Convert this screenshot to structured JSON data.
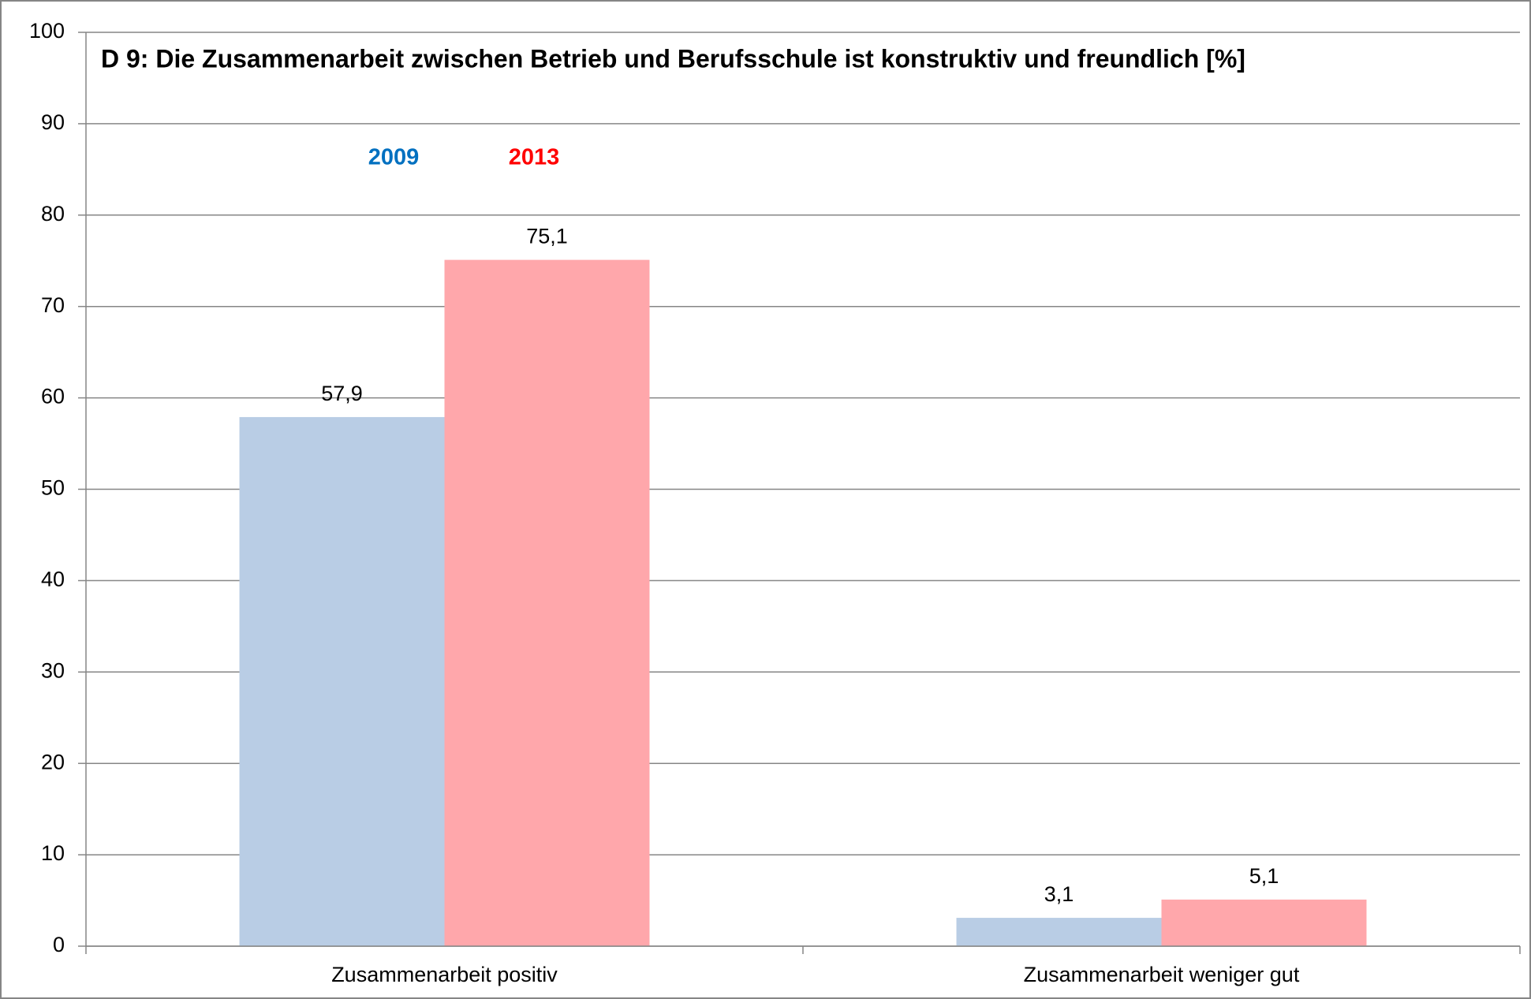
{
  "chart_data": {
    "type": "bar",
    "title": "D 9: Die Zusammenarbeit zwischen Betrieb und Berufsschule ist konstruktiv und freundlich [%]",
    "categories": [
      "Zusammenarbeit positiv",
      "Zusammenarbeit weniger gut"
    ],
    "series": [
      {
        "name": "2009",
        "color": "#b9cde5",
        "label_color": "#0070c0",
        "values": [
          57.9,
          3.1
        ],
        "value_labels": [
          "57,9",
          "3,1"
        ]
      },
      {
        "name": "2013",
        "color": "#ffa7ab",
        "label_color": "#ff0000",
        "values": [
          75.1,
          5.1
        ],
        "value_labels": [
          "75,1",
          "5,1"
        ]
      }
    ],
    "ylim": [
      0,
      100
    ],
    "yticks": [
      0,
      10,
      20,
      30,
      40,
      50,
      60,
      70,
      80,
      90,
      100
    ],
    "grid": true
  }
}
